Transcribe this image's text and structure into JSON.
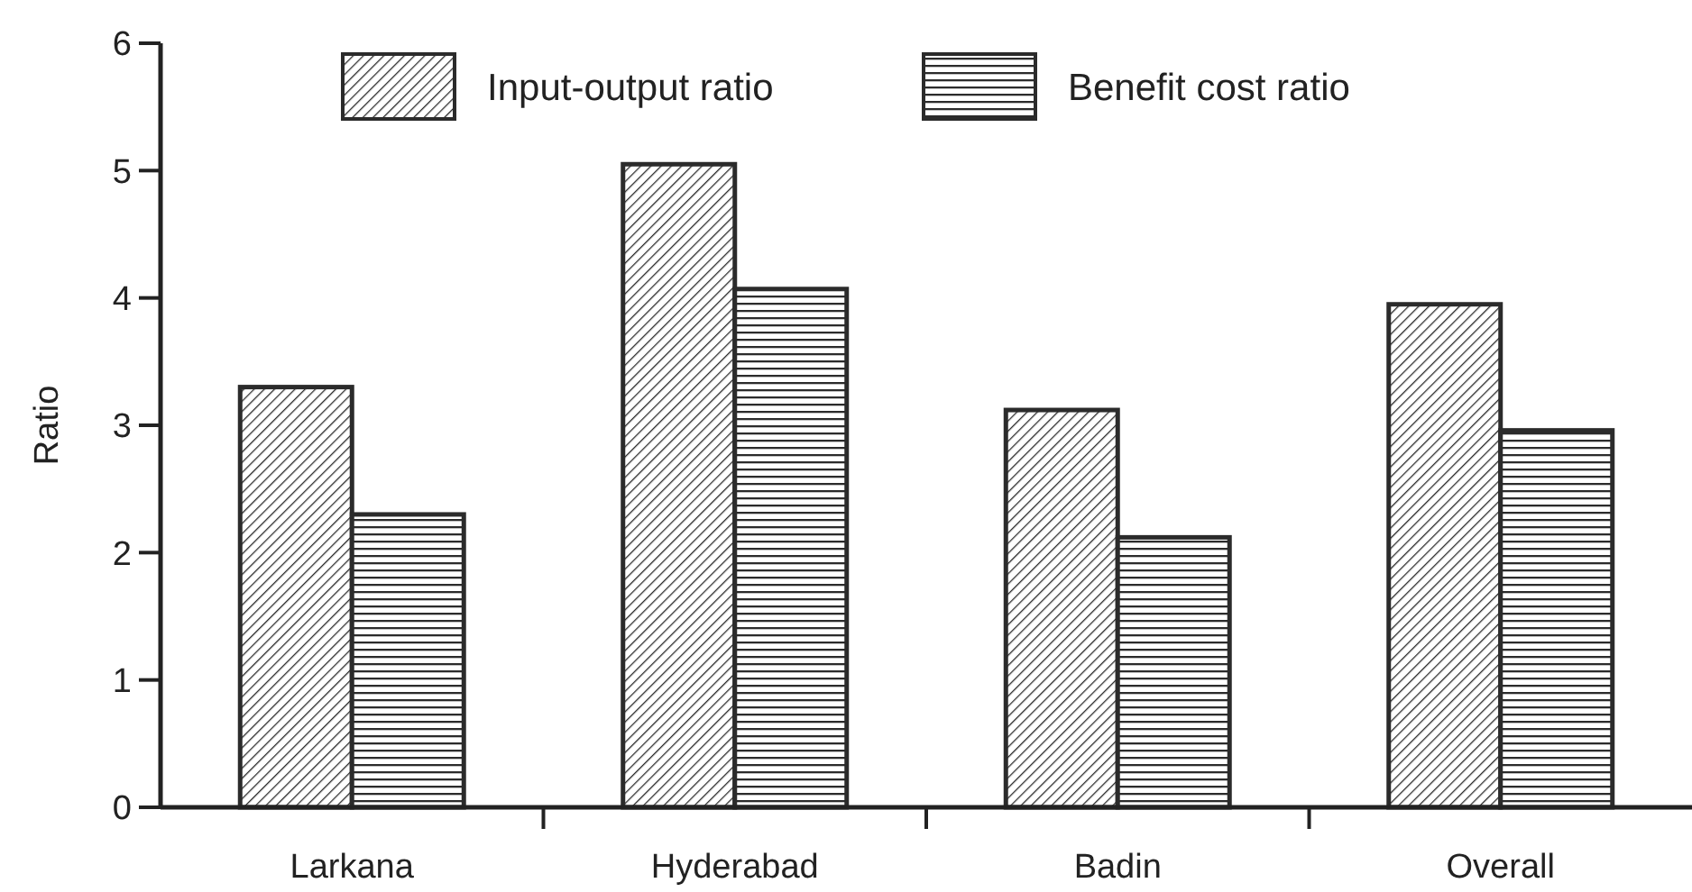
{
  "chart_data": {
    "type": "bar",
    "ylabel": "Ratio",
    "categories": [
      "Larkana",
      "Hyderabad",
      "Badin",
      "Overall"
    ],
    "series": [
      {
        "name": "Input-output ratio",
        "color": "#2b2b2b",
        "values": [
          3.3,
          5.05,
          3.12,
          3.95
        ]
      },
      {
        "name": "Benefit cost ratio",
        "color": "#2b2b2b",
        "values": [
          2.3,
          4.07,
          2.12,
          2.96
        ]
      }
    ],
    "ylim": [
      0,
      6
    ],
    "yticks": [
      0,
      1,
      2,
      3,
      4,
      5,
      6
    ],
    "grid": false,
    "legend": "top"
  }
}
